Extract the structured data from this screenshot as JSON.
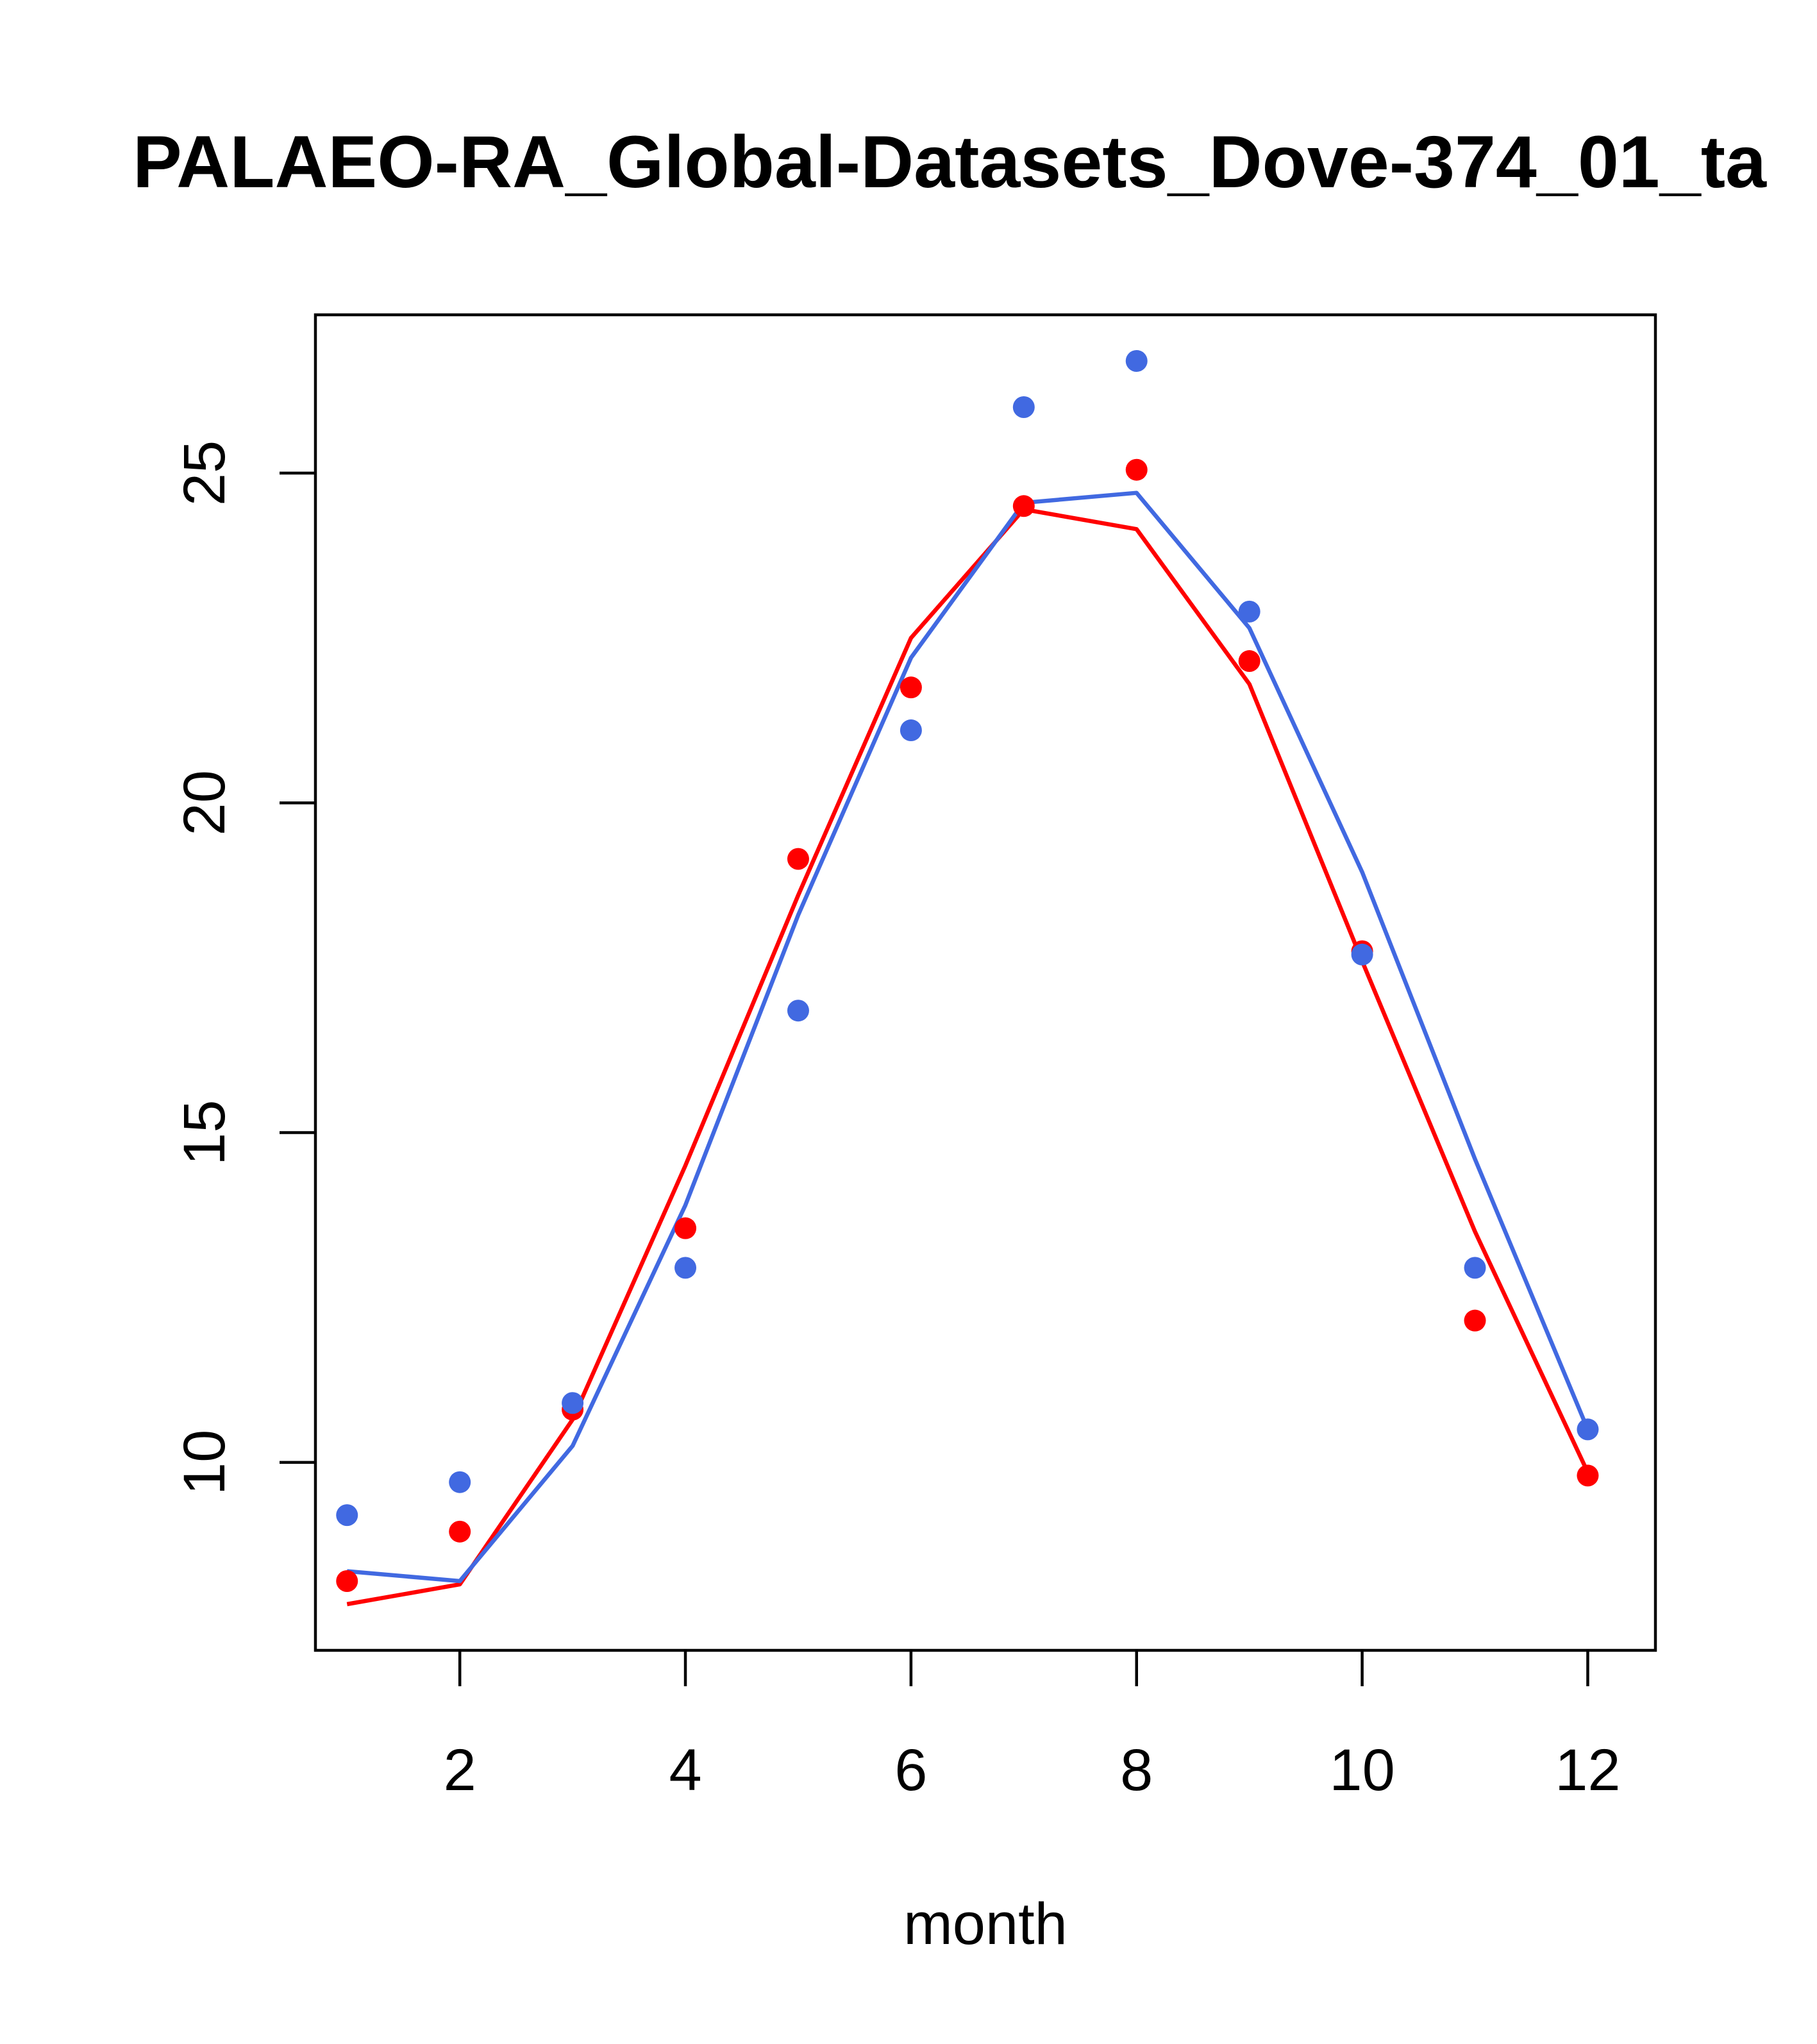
{
  "chart_data": {
    "type": "line",
    "title": "PALAEO-RA_Global-Datasets_Dove-374_01_ta",
    "xlabel": "month",
    "ylabel": "",
    "xlim": [
      0.72,
      12.6
    ],
    "ylim": [
      7.15,
      27.4
    ],
    "x_ticks": [
      2,
      4,
      6,
      8,
      10,
      12
    ],
    "y_ticks": [
      10,
      15,
      20,
      25
    ],
    "grid": false,
    "legend": "none",
    "series": [
      {
        "color": "#ff0000",
        "style": "points",
        "x": [
          1,
          2,
          3,
          4,
          5,
          6,
          7,
          8,
          9,
          10,
          11,
          12
        ],
        "y": [
          8.2,
          8.95,
          10.8,
          13.55,
          19.15,
          21.75,
          24.5,
          25.05,
          22.15,
          17.75,
          12.15,
          9.8
        ]
      },
      {
        "color": "#4169e1",
        "style": "points",
        "x": [
          1,
          2,
          3,
          4,
          5,
          6,
          7,
          8,
          9,
          10,
          11,
          12
        ],
        "y": [
          9.2,
          9.7,
          10.9,
          12.95,
          16.85,
          21.1,
          26.0,
          26.7,
          22.9,
          17.7,
          12.95,
          10.5
        ]
      },
      {
        "color": "#ff0000",
        "style": "line",
        "x": [
          1,
          2,
          3,
          4,
          5,
          6,
          7,
          8,
          9,
          10,
          11,
          12
        ],
        "y": [
          7.85,
          8.15,
          10.65,
          14.5,
          18.6,
          22.5,
          24.45,
          24.15,
          21.8,
          17.6,
          13.5,
          9.85
        ]
      },
      {
        "color": "#4169e1",
        "style": "line",
        "x": [
          1,
          2,
          3,
          4,
          5,
          6,
          7,
          8,
          9,
          10,
          11,
          12
        ],
        "y": [
          8.35,
          8.2,
          10.25,
          13.9,
          18.3,
          22.2,
          24.55,
          24.7,
          22.65,
          18.95,
          14.6,
          10.5
        ]
      }
    ]
  }
}
